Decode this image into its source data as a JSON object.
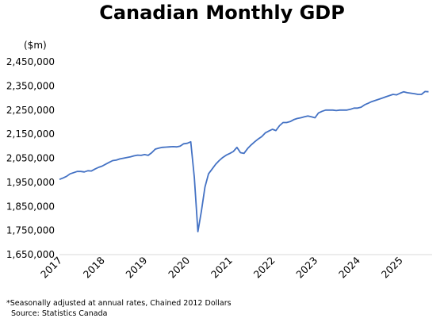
{
  "chart_data": {
    "type": "line",
    "title": "Canadian Monthly GDP",
    "ylabel": "($m)",
    "xlabel": "",
    "ylim": [
      1650000,
      2450000
    ],
    "yticks": [
      1650000,
      1750000,
      1850000,
      1950000,
      2050000,
      2150000,
      2250000,
      2350000,
      2450000
    ],
    "ytick_labels": [
      "1,650,000",
      "1,750,000",
      "1,850,000",
      "1,950,000",
      "2,050,000",
      "2,150,000",
      "2,250,000",
      "2,350,000",
      "2,450,000"
    ],
    "xlim": [
      2017.0,
      2025.75
    ],
    "xticks": [
      2017,
      2018,
      2019,
      2020,
      2021,
      2022,
      2023,
      2024,
      2025
    ],
    "xtick_labels": [
      "2017",
      "2018",
      "2019",
      "2020",
      "2021",
      "2022",
      "2023",
      "2024",
      "2025"
    ],
    "grid": false,
    "line_color": "#4472C4",
    "series": [
      {
        "x": [
          2017.0,
          2017.083,
          2017.167,
          2017.25,
          2017.333,
          2017.417,
          2017.5,
          2017.583,
          2017.667,
          2017.75,
          2017.833,
          2017.917,
          2018.0,
          2018.083,
          2018.167,
          2018.25,
          2018.333,
          2018.417,
          2018.5,
          2018.583,
          2018.667,
          2018.75,
          2018.833,
          2018.917,
          2019.0,
          2019.083,
          2019.167,
          2019.25,
          2019.333,
          2019.417,
          2019.5,
          2019.583,
          2019.667,
          2019.75,
          2019.833,
          2019.917,
          2020.0,
          2020.083,
          2020.167,
          2020.25,
          2020.333,
          2020.417,
          2020.5,
          2020.583,
          2020.667,
          2020.75,
          2020.833,
          2020.917,
          2021.0,
          2021.083,
          2021.167,
          2021.25,
          2021.333,
          2021.417,
          2021.5,
          2021.583,
          2021.667,
          2021.75,
          2021.833,
          2021.917,
          2022.0,
          2022.083,
          2022.167,
          2022.25,
          2022.333,
          2022.417,
          2022.5,
          2022.583,
          2022.667,
          2022.75,
          2022.833,
          2022.917,
          2023.0,
          2023.083,
          2023.167,
          2023.25,
          2023.333,
          2023.417,
          2023.5,
          2023.583,
          2023.667,
          2023.75,
          2023.833,
          2023.917,
          2024.0,
          2024.083,
          2024.167,
          2024.25,
          2024.333,
          2024.417,
          2024.5,
          2024.583,
          2024.667,
          2024.75,
          2024.833,
          2024.917,
          2025.0,
          2025.083,
          2025.167,
          2025.25,
          2025.333,
          2025.417,
          2025.5,
          2025.583,
          2025.667
        ],
        "y": [
          1962000,
          1968000,
          1975000,
          1985000,
          1990000,
          1995000,
          1995000,
          1993000,
          1998000,
          1997000,
          2005000,
          2012000,
          2017000,
          2025000,
          2033000,
          2040000,
          2042000,
          2047000,
          2050000,
          2053000,
          2056000,
          2060000,
          2063000,
          2062000,
          2065000,
          2062000,
          2073000,
          2088000,
          2092000,
          2095000,
          2096000,
          2097000,
          2098000,
          2097000,
          2100000,
          2110000,
          2112000,
          2118000,
          1970000,
          1745000,
          1830000,
          1930000,
          1985000,
          2005000,
          2025000,
          2040000,
          2053000,
          2063000,
          2070000,
          2078000,
          2095000,
          2073000,
          2070000,
          2090000,
          2105000,
          2118000,
          2130000,
          2140000,
          2155000,
          2163000,
          2170000,
          2165000,
          2185000,
          2198000,
          2198000,
          2202000,
          2210000,
          2215000,
          2218000,
          2222000,
          2225000,
          2222000,
          2218000,
          2238000,
          2245000,
          2250000,
          2250000,
          2250000,
          2248000,
          2250000,
          2250000,
          2250000,
          2253000,
          2258000,
          2258000,
          2262000,
          2272000,
          2278000,
          2285000,
          2290000,
          2295000,
          2300000,
          2305000,
          2310000,
          2315000,
          2313000,
          2320000,
          2326000,
          2322000,
          2320000,
          2318000,
          2315000,
          2315000,
          2327000,
          2326000
        ]
      }
    ]
  },
  "footnote": {
    "line1": "*Seasonally adjusted at annual rates, Chained 2012 Dollars",
    "line2": "Source: Statistics Canada"
  }
}
